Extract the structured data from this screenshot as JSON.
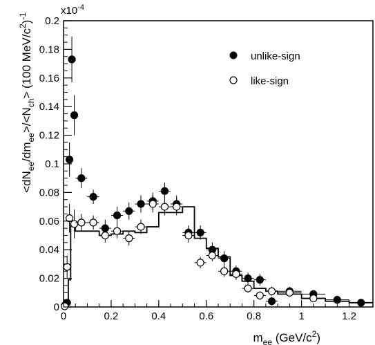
{
  "chart_data": {
    "type": "scatter",
    "title": "",
    "xlabel": {
      "main": "m",
      "sub": "ee",
      "unit_pre": " (GeV/c",
      "unit_sup": "2",
      "unit_post": ")"
    },
    "ylabel": {
      "parts": [
        {
          "t": "<dN",
          "k": "n"
        },
        {
          "t": "ee",
          "k": "sub"
        },
        {
          "t": "/dm",
          "k": "n"
        },
        {
          "t": "ee",
          "k": "sub"
        },
        {
          "t": ">/<N",
          "k": "n"
        },
        {
          "t": "ch",
          "k": "sub"
        },
        {
          "t": "> (100 MeV/c",
          "k": "n"
        },
        {
          "t": "2",
          "k": "sup"
        },
        {
          "t": ")",
          "k": "n"
        },
        {
          "t": "-1",
          "k": "sup"
        }
      ]
    },
    "exponent_label": {
      "base": "x10",
      "exp": "-4"
    },
    "xlim": [
      0,
      1.3
    ],
    "ylim": [
      0,
      0.2
    ],
    "x_ticks": [
      0,
      0.2,
      0.4,
      0.6,
      0.8,
      1,
      1.2
    ],
    "x_tick_labels": [
      "0",
      "0.2",
      "0.4",
      "0.6",
      "0.8",
      "1",
      "1.2"
    ],
    "y_ticks": [
      0,
      0.02,
      0.04,
      0.06,
      0.08,
      0.1,
      0.12,
      0.14,
      0.16,
      0.18,
      0.2
    ],
    "y_tick_labels": [
      "0",
      "0.02",
      "0.04",
      "0.06",
      "0.08",
      "0.1",
      "0.12",
      "0.14",
      "0.16",
      "0.18",
      "0.2"
    ],
    "legend_position": "top-right",
    "series": [
      {
        "name": "unlike-sign",
        "marker": "filled-circle",
        "color": "#000000",
        "points": [
          {
            "x": 0.005,
            "y": 0.001,
            "xerr": 0.005,
            "yerr": 0.001
          },
          {
            "x": 0.015,
            "y": 0.003,
            "xerr": 0.005,
            "yerr": 0.002
          },
          {
            "x": 0.025,
            "y": 0.103,
            "xerr": 0.005,
            "yerr": 0.012
          },
          {
            "x": 0.035,
            "y": 0.173,
            "xerr": 0.005,
            "yerr": 0.016
          },
          {
            "x": 0.045,
            "y": 0.134,
            "xerr": 0.005,
            "yerr": 0.014
          },
          {
            "x": 0.075,
            "y": 0.09,
            "xerr": 0.025,
            "yerr": 0.007
          },
          {
            "x": 0.125,
            "y": 0.077,
            "xerr": 0.025,
            "yerr": 0.005
          },
          {
            "x": 0.175,
            "y": 0.055,
            "xerr": 0.025,
            "yerr": 0.006
          },
          {
            "x": 0.225,
            "y": 0.064,
            "xerr": 0.025,
            "yerr": 0.006
          },
          {
            "x": 0.275,
            "y": 0.067,
            "xerr": 0.025,
            "yerr": 0.006
          },
          {
            "x": 0.325,
            "y": 0.072,
            "xerr": 0.025,
            "yerr": 0.006
          },
          {
            "x": 0.375,
            "y": 0.074,
            "xerr": 0.025,
            "yerr": 0.006
          },
          {
            "x": 0.425,
            "y": 0.081,
            "xerr": 0.025,
            "yerr": 0.006
          },
          {
            "x": 0.475,
            "y": 0.072,
            "xerr": 0.025,
            "yerr": 0.006
          },
          {
            "x": 0.525,
            "y": 0.052,
            "xerr": 0.025,
            "yerr": 0.005
          },
          {
            "x": 0.575,
            "y": 0.052,
            "xerr": 0.025,
            "yerr": 0.005
          },
          {
            "x": 0.625,
            "y": 0.04,
            "xerr": 0.025,
            "yerr": 0.005
          },
          {
            "x": 0.675,
            "y": 0.034,
            "xerr": 0.025,
            "yerr": 0.005
          },
          {
            "x": 0.725,
            "y": 0.025,
            "xerr": 0.025,
            "yerr": 0.004
          },
          {
            "x": 0.775,
            "y": 0.02,
            "xerr": 0.025,
            "yerr": 0.004
          },
          {
            "x": 0.825,
            "y": 0.019,
            "xerr": 0.025,
            "yerr": 0.004
          },
          {
            "x": 0.875,
            "y": 0.004,
            "xerr": 0.025,
            "yerr": 0.003
          },
          {
            "x": 0.95,
            "y": 0.011,
            "xerr": 0.05,
            "yerr": 0.003
          },
          {
            "x": 1.05,
            "y": 0.009,
            "xerr": 0.05,
            "yerr": 0.002
          },
          {
            "x": 1.15,
            "y": 0.005,
            "xerr": 0.05,
            "yerr": 0.002
          },
          {
            "x": 1.25,
            "y": 0.003,
            "xerr": 0.05,
            "yerr": 0.002
          }
        ]
      },
      {
        "name": "like-sign",
        "marker": "open-circle",
        "color": "#000000",
        "points": [
          {
            "x": 0.005,
            "y": 0.0005,
            "xerr": 0.005,
            "yerr": 0.001
          },
          {
            "x": 0.015,
            "y": 0.028,
            "xerr": 0.005,
            "yerr": 0.008
          },
          {
            "x": 0.025,
            "y": 0.062,
            "xerr": 0.005,
            "yerr": 0.01
          },
          {
            "x": 0.045,
            "y": 0.058,
            "xerr": 0.005,
            "yerr": 0.01
          },
          {
            "x": 0.075,
            "y": 0.059,
            "xerr": 0.025,
            "yerr": 0.006
          },
          {
            "x": 0.125,
            "y": 0.059,
            "xerr": 0.025,
            "yerr": 0.005
          },
          {
            "x": 0.175,
            "y": 0.05,
            "xerr": 0.025,
            "yerr": 0.005
          },
          {
            "x": 0.225,
            "y": 0.053,
            "xerr": 0.025,
            "yerr": 0.005
          },
          {
            "x": 0.275,
            "y": 0.048,
            "xerr": 0.025,
            "yerr": 0.005
          },
          {
            "x": 0.325,
            "y": 0.056,
            "xerr": 0.025,
            "yerr": 0.005
          },
          {
            "x": 0.375,
            "y": 0.072,
            "xerr": 0.025,
            "yerr": 0.006
          },
          {
            "x": 0.425,
            "y": 0.07,
            "xerr": 0.025,
            "yerr": 0.006
          },
          {
            "x": 0.475,
            "y": 0.07,
            "xerr": 0.025,
            "yerr": 0.006
          },
          {
            "x": 0.525,
            "y": 0.05,
            "xerr": 0.025,
            "yerr": 0.005
          },
          {
            "x": 0.575,
            "y": 0.031,
            "xerr": 0.025,
            "yerr": 0.004
          },
          {
            "x": 0.625,
            "y": 0.036,
            "xerr": 0.025,
            "yerr": 0.004
          },
          {
            "x": 0.675,
            "y": 0.025,
            "xerr": 0.025,
            "yerr": 0.004
          },
          {
            "x": 0.725,
            "y": 0.023,
            "xerr": 0.025,
            "yerr": 0.004
          },
          {
            "x": 0.775,
            "y": 0.013,
            "xerr": 0.025,
            "yerr": 0.003
          },
          {
            "x": 0.825,
            "y": 0.008,
            "xerr": 0.025,
            "yerr": 0.003
          },
          {
            "x": 0.875,
            "y": 0.011,
            "xerr": 0.025,
            "yerr": 0.003
          },
          {
            "x": 0.95,
            "y": 0.01,
            "xerr": 0.05,
            "yerr": 0.002
          },
          {
            "x": 1.05,
            "y": 0.006,
            "xerr": 0.05,
            "yerr": 0.002
          }
        ]
      },
      {
        "name": "",
        "type": "histogram-step",
        "color": "#000000",
        "bin_edges": [
          0,
          0.01,
          0.02,
          0.03,
          0.05,
          0.1,
          0.15,
          0.2,
          0.25,
          0.3,
          0.35,
          0.4,
          0.45,
          0.5,
          0.55,
          0.6,
          0.65,
          0.7,
          0.75,
          0.8,
          0.85,
          0.9,
          1.0,
          1.1,
          1.2,
          1.3
        ],
        "values": [
          0.0,
          0.002,
          0.019,
          0.058,
          0.053,
          0.053,
          0.05,
          0.051,
          0.053,
          0.052,
          0.056,
          0.066,
          0.066,
          0.07,
          0.048,
          0.041,
          0.035,
          0.022,
          0.018,
          0.013,
          0.011,
          0.009,
          0.006,
          0.004,
          0.003
        ]
      }
    ]
  }
}
